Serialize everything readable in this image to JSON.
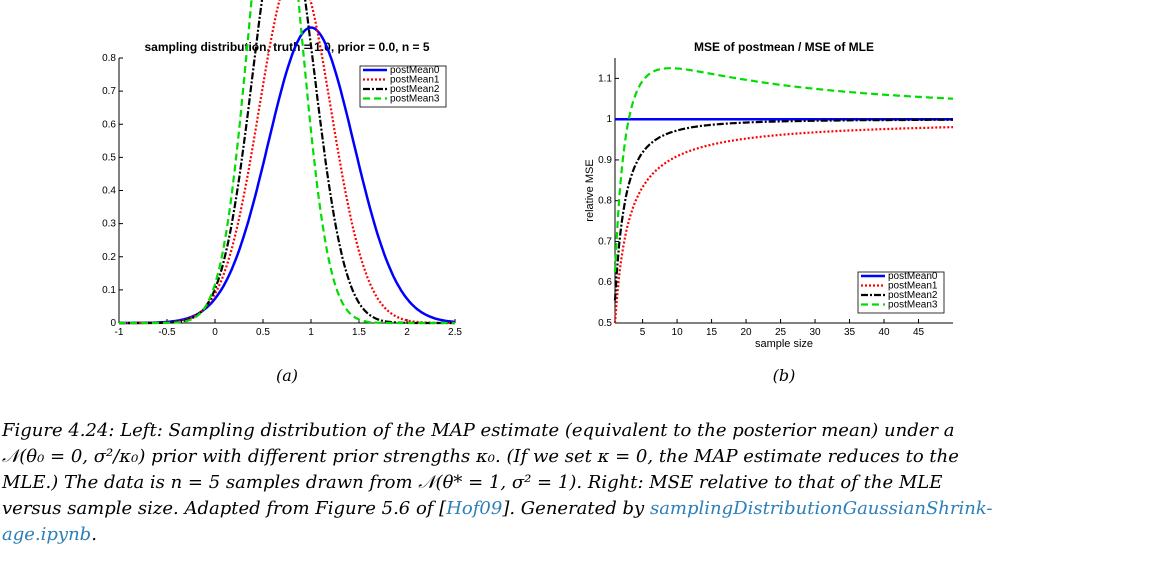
{
  "chart_data": [
    {
      "type": "line",
      "title": "sampling distribution, truth = 1.0, prior = 0.0, n = 5",
      "xlabel": "",
      "ylabel": "",
      "xlim": [
        -1,
        2.5
      ],
      "ylim": [
        0,
        0.8
      ],
      "xticks": [
        "-1",
        "-0.5",
        "0",
        "0.5",
        "1",
        "1.5",
        "2",
        "2.5"
      ],
      "yticks": [
        "0",
        "0.1",
        "0.2",
        "0.3",
        "0.4",
        "0.5",
        "0.6",
        "0.7",
        "0.8"
      ],
      "legend_position": "top-right",
      "series": [
        {
          "name": "postMean0",
          "color": "#0000ff",
          "style": "solid",
          "kappa": 0
        },
        {
          "name": "postMean1",
          "color": "#ff0000",
          "style": "dotted",
          "kappa": 1
        },
        {
          "name": "postMean2",
          "color": "#000000",
          "style": "dashdot",
          "kappa": 2
        },
        {
          "name": "postMean3",
          "color": "#00dd00",
          "style": "dashed",
          "kappa": 3
        }
      ],
      "sublabel": "(a)"
    },
    {
      "type": "line",
      "title": "MSE of postmean / MSE of MLE",
      "xlabel": "sample size",
      "ylabel": "relative MSE",
      "xlim": [
        1,
        50
      ],
      "ylim": [
        0.5,
        1.15
      ],
      "xticks": [
        "5",
        "10",
        "15",
        "20",
        "25",
        "30",
        "35",
        "40",
        "45"
      ],
      "yticks": [
        "0.5",
        "0.6",
        "0.7",
        "0.8",
        "0.9",
        "1",
        "1.1"
      ],
      "legend_position": "bottom-right",
      "series": [
        {
          "name": "postMean0",
          "color": "#0000ff",
          "style": "solid",
          "kappa": 0
        },
        {
          "name": "postMean1",
          "color": "#ff0000",
          "style": "dotted",
          "kappa": 1
        },
        {
          "name": "postMean2",
          "color": "#000000",
          "style": "dashdot",
          "kappa": 2
        },
        {
          "name": "postMean3",
          "color": "#00dd00",
          "style": "dashed",
          "kappa": 3
        }
      ],
      "sublabel": "(b)"
    }
  ],
  "caption": {
    "line1": "Figure 4.24: Left: Sampling distribution of the MAP estimate (equivalent to the posterior mean) under a",
    "line2": "𝒩(θ₀ = 0, σ²/κ₀) prior with different prior strengths κ₀. (If we set κ = 0, the MAP estimate reduces to the",
    "line3": "MLE.) The data is n = 5 samples drawn from 𝒩(θ* = 1, σ² = 1). Right: MSE relative to that of the MLE",
    "line4_a": "versus sample size. Adapted from Figure 5.6 of [",
    "line4_link1": "Hof09",
    "line4_b": "]. Generated by ",
    "line4_link2": "samplingDistributionGaussianShrink-",
    "line5_link": "age.ipynb",
    "line5_end": "."
  }
}
